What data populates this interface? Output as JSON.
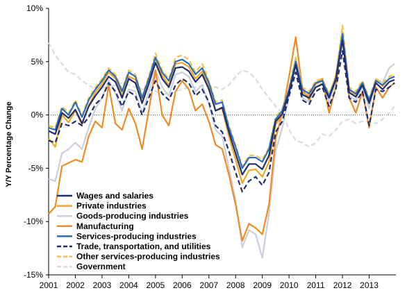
{
  "chart_data": {
    "type": "line",
    "title": "",
    "xlabel": "",
    "ylabel": "Y/Y Percentage Change",
    "ylim": [
      -15,
      10
    ],
    "xlim": [
      2001,
      2014
    ],
    "y_ticks": [
      10,
      5,
      0,
      -5,
      -10,
      -15
    ],
    "y_tick_labels": [
      "10%",
      "5%",
      "0%",
      "-5%",
      "-10%",
      "-15%"
    ],
    "x_ticks": [
      2001,
      2002,
      2003,
      2004,
      2005,
      2006,
      2007,
      2008,
      2009,
      2010,
      2011,
      2012,
      2013
    ],
    "x_tick_labels": [
      "2001",
      "2002",
      "2003",
      "2004",
      "2005",
      "2006",
      "2007",
      "2008",
      "2009",
      "2010",
      "2011",
      "2012",
      "2013"
    ],
    "grid": false,
    "zero_line": "dotted",
    "legend_position": "bottom-left",
    "series": [
      {
        "name": "Wages and salaries",
        "color": "#1f2f6e",
        "dash": "solid",
        "x": [
          2001.0,
          2001.25,
          2001.5,
          2001.75,
          2002.0,
          2002.25,
          2002.5,
          2002.75,
          2003.0,
          2003.25,
          2003.5,
          2003.75,
          2004.0,
          2004.25,
          2004.5,
          2004.75,
          2005.0,
          2005.25,
          2005.5,
          2005.75,
          2006.0,
          2006.25,
          2006.5,
          2006.75,
          2007.0,
          2007.25,
          2007.5,
          2007.75,
          2008.0,
          2008.25,
          2008.5,
          2008.75,
          2009.0,
          2009.25,
          2009.5,
          2009.75,
          2010.0,
          2010.25,
          2010.5,
          2010.75,
          2011.0,
          2011.25,
          2011.5,
          2011.75,
          2012.0,
          2012.25,
          2012.5,
          2012.75,
          2013.0,
          2013.25,
          2013.5,
          2013.75,
          2013.95
        ],
        "y": [
          -1.5,
          -1.8,
          0.2,
          -0.3,
          0.5,
          -0.8,
          0.8,
          1.8,
          2.6,
          3.6,
          3.1,
          1.6,
          3.4,
          3.0,
          1.1,
          2.9,
          4.9,
          3.4,
          2.6,
          4.4,
          4.5,
          4.1,
          3.1,
          3.8,
          2.4,
          0.4,
          0.7,
          -1.6,
          -3.6,
          -5.6,
          -4.6,
          -4.6,
          -5.1,
          -3.8,
          -0.6,
          0.1,
          2.1,
          4.7,
          1.9,
          1.6,
          2.6,
          2.9,
          1.6,
          3.3,
          7.0,
          2.1,
          1.7,
          2.8,
          1.1,
          3.0,
          2.4,
          3.1,
          3.3
        ]
      },
      {
        "name": "Private industries",
        "color": "#f2a623",
        "dash": "solid",
        "x": [
          2001.0,
          2001.25,
          2001.5,
          2001.75,
          2002.0,
          2002.25,
          2002.5,
          2002.75,
          2003.0,
          2003.25,
          2003.5,
          2003.75,
          2004.0,
          2004.25,
          2004.5,
          2004.75,
          2005.0,
          2005.25,
          2005.5,
          2005.75,
          2006.0,
          2006.25,
          2006.5,
          2006.75,
          2007.0,
          2007.25,
          2007.5,
          2007.75,
          2008.0,
          2008.25,
          2008.5,
          2008.75,
          2009.0,
          2009.25,
          2009.5,
          2009.75,
          2010.0,
          2010.25,
          2010.5,
          2010.75,
          2011.0,
          2011.25,
          2011.5,
          2011.75,
          2012.0,
          2012.25,
          2012.5,
          2012.75,
          2013.0,
          2013.25,
          2013.5,
          2013.75,
          2013.95
        ],
        "y": [
          -2.2,
          -3.0,
          0.0,
          -0.7,
          0.4,
          -0.9,
          0.9,
          2.1,
          2.9,
          4.0,
          3.4,
          1.8,
          3.6,
          3.3,
          1.2,
          3.1,
          5.3,
          3.7,
          2.8,
          4.8,
          4.9,
          4.5,
          3.4,
          4.1,
          2.6,
          0.4,
          0.6,
          -2.0,
          -4.2,
          -6.4,
          -5.2,
          -5.1,
          -5.8,
          -4.4,
          -0.9,
          0.0,
          2.3,
          5.2,
          2.1,
          1.8,
          2.9,
          3.2,
          1.8,
          3.7,
          7.8,
          2.3,
          1.9,
          3.1,
          1.2,
          3.3,
          2.7,
          3.4,
          3.6
        ]
      },
      {
        "name": "Goods-producing industries",
        "color": "#c9cfdc",
        "dash": "solid",
        "x": [
          2001.0,
          2001.25,
          2001.5,
          2001.75,
          2002.0,
          2002.25,
          2002.5,
          2002.75,
          2003.0,
          2003.25,
          2003.5,
          2003.75,
          2004.0,
          2004.25,
          2004.5,
          2004.75,
          2005.0,
          2005.25,
          2005.5,
          2005.75,
          2006.0,
          2006.25,
          2006.5,
          2006.75,
          2007.0,
          2007.25,
          2007.5,
          2007.75,
          2008.0,
          2008.25,
          2008.5,
          2008.75,
          2009.0,
          2009.25,
          2009.5,
          2009.75,
          2010.0,
          2010.25,
          2010.5,
          2010.75,
          2011.0,
          2011.25,
          2011.5,
          2011.75,
          2012.0,
          2012.25,
          2012.5,
          2012.75,
          2013.0,
          2013.25,
          2013.5,
          2013.75,
          2013.95
        ],
        "y": [
          -6.0,
          -6.2,
          -3.6,
          -3.2,
          -2.6,
          -3.2,
          -1.2,
          0.6,
          1.6,
          3.2,
          2.0,
          0.4,
          2.4,
          2.2,
          0.2,
          2.2,
          4.2,
          2.6,
          1.8,
          3.8,
          4.0,
          3.6,
          2.2,
          2.8,
          1.0,
          -1.4,
          -2.0,
          -5.0,
          -8.0,
          -12.4,
          -10.8,
          -11.2,
          -13.4,
          -9.2,
          -3.4,
          -1.2,
          1.8,
          5.4,
          1.6,
          1.2,
          2.6,
          3.0,
          1.2,
          3.2,
          7.2,
          1.8,
          1.4,
          2.6,
          0.6,
          3.4,
          3.0,
          4.4,
          4.8
        ]
      },
      {
        "name": "Manufacturing",
        "color": "#f08a24",
        "dash": "solid",
        "x": [
          2001.0,
          2001.25,
          2001.5,
          2001.75,
          2002.0,
          2002.25,
          2002.5,
          2002.75,
          2003.0,
          2003.25,
          2003.5,
          2003.75,
          2004.0,
          2004.25,
          2004.5,
          2004.75,
          2005.0,
          2005.25,
          2005.5,
          2005.75,
          2006.0,
          2006.25,
          2006.5,
          2006.75,
          2007.0,
          2007.25,
          2007.5,
          2007.75,
          2008.0,
          2008.25,
          2008.5,
          2008.75,
          2009.0,
          2009.25,
          2009.5,
          2009.75,
          2010.0,
          2010.25,
          2010.5,
          2010.75,
          2011.0,
          2011.25,
          2011.5,
          2011.75,
          2012.0,
          2012.25,
          2012.5,
          2012.75,
          2013.0,
          2013.25,
          2013.5,
          2013.75,
          2013.95
        ],
        "y": [
          -9.3,
          -8.6,
          -4.8,
          -4.5,
          -4.2,
          -4.4,
          -2.0,
          -0.6,
          -1.2,
          2.8,
          -0.8,
          -1.4,
          0.6,
          -0.8,
          -3.2,
          0.4,
          4.2,
          0.0,
          -1.0,
          2.2,
          3.2,
          2.4,
          0.4,
          1.0,
          -0.6,
          -2.8,
          -3.2,
          -5.6,
          -8.4,
          -11.8,
          -10.2,
          -10.6,
          -11.2,
          -8.4,
          -2.2,
          0.2,
          3.6,
          7.3,
          2.4,
          1.4,
          3.0,
          3.4,
          0.2,
          2.6,
          7.6,
          1.6,
          0.2,
          2.2,
          -1.2,
          2.6,
          1.6,
          2.6,
          3.0
        ]
      },
      {
        "name": "Services-producing industries",
        "color": "#2a6ebb",
        "dash": "solid",
        "x": [
          2001.0,
          2001.25,
          2001.5,
          2001.75,
          2002.0,
          2002.25,
          2002.5,
          2002.75,
          2003.0,
          2003.25,
          2003.5,
          2003.75,
          2004.0,
          2004.25,
          2004.5,
          2004.75,
          2005.0,
          2005.25,
          2005.5,
          2005.75,
          2006.0,
          2006.25,
          2006.5,
          2006.75,
          2007.0,
          2007.25,
          2007.5,
          2007.75,
          2008.0,
          2008.25,
          2008.5,
          2008.75,
          2009.0,
          2009.25,
          2009.5,
          2009.75,
          2010.0,
          2010.25,
          2010.5,
          2010.75,
          2011.0,
          2011.25,
          2011.5,
          2011.75,
          2012.0,
          2012.25,
          2012.5,
          2012.75,
          2013.0,
          2013.25,
          2013.5,
          2013.75,
          2013.95
        ],
        "y": [
          -1.2,
          -1.4,
          0.6,
          0.0,
          1.2,
          -0.2,
          1.4,
          2.4,
          3.2,
          4.2,
          3.6,
          2.2,
          4.0,
          3.6,
          1.6,
          3.4,
          5.4,
          4.0,
          3.2,
          5.0,
          5.2,
          4.8,
          3.8,
          4.4,
          3.0,
          1.0,
          1.2,
          -1.2,
          -3.0,
          -5.0,
          -4.0,
          -4.0,
          -4.4,
          -3.2,
          -0.4,
          0.4,
          2.4,
          5.0,
          2.4,
          2.0,
          3.0,
          3.2,
          1.8,
          3.4,
          7.6,
          2.4,
          2.0,
          3.0,
          1.4,
          3.2,
          2.8,
          3.4,
          3.6
        ]
      },
      {
        "name": "Trade, transportation, and utilities",
        "color": "#1f2f6e",
        "dash": "dashed",
        "x": [
          2001.0,
          2001.25,
          2001.5,
          2001.75,
          2002.0,
          2002.25,
          2002.5,
          2002.75,
          2003.0,
          2003.25,
          2003.5,
          2003.75,
          2004.0,
          2004.25,
          2004.5,
          2004.75,
          2005.0,
          2005.25,
          2005.5,
          2005.75,
          2006.0,
          2006.25,
          2006.5,
          2006.75,
          2007.0,
          2007.25,
          2007.5,
          2007.75,
          2008.0,
          2008.25,
          2008.5,
          2008.75,
          2009.0,
          2009.25,
          2009.5,
          2009.75,
          2010.0,
          2010.25,
          2010.5,
          2010.75,
          2011.0,
          2011.25,
          2011.5,
          2011.75,
          2012.0,
          2012.25,
          2012.5,
          2012.75,
          2013.0,
          2013.25,
          2013.5,
          2013.75,
          2013.95
        ],
        "y": [
          -2.4,
          -2.6,
          -0.8,
          -1.0,
          -0.6,
          -1.0,
          -0.2,
          1.0,
          1.6,
          3.0,
          2.2,
          0.8,
          2.2,
          1.8,
          0.0,
          1.6,
          3.2,
          2.0,
          1.4,
          2.8,
          3.4,
          3.0,
          1.8,
          2.4,
          1.2,
          -1.0,
          -1.6,
          -3.4,
          -5.4,
          -7.2,
          -6.2,
          -5.8,
          -6.6,
          -5.4,
          -1.6,
          -0.6,
          1.8,
          4.0,
          1.4,
          1.0,
          2.2,
          2.6,
          0.8,
          2.4,
          6.0,
          1.6,
          1.2,
          2.2,
          -1.0,
          2.4,
          2.2,
          2.6,
          3.0
        ]
      },
      {
        "name": "Other services-producing industries",
        "color": "#f5c342",
        "dash": "dashed",
        "x": [
          2001.0,
          2001.25,
          2001.5,
          2001.75,
          2002.0,
          2002.25,
          2002.5,
          2002.75,
          2003.0,
          2003.25,
          2003.5,
          2003.75,
          2004.0,
          2004.25,
          2004.5,
          2004.75,
          2005.0,
          2005.25,
          2005.5,
          2005.75,
          2006.0,
          2006.25,
          2006.5,
          2006.75,
          2007.0,
          2007.25,
          2007.5,
          2007.75,
          2008.0,
          2008.25,
          2008.5,
          2008.75,
          2009.0,
          2009.25,
          2009.5,
          2009.75,
          2010.0,
          2010.25,
          2010.5,
          2010.75,
          2011.0,
          2011.25,
          2011.5,
          2011.75,
          2012.0,
          2012.25,
          2012.5,
          2012.75,
          2013.0,
          2013.25,
          2013.5,
          2013.75,
          2013.95
        ],
        "y": [
          -1.0,
          -1.2,
          0.8,
          0.2,
          1.4,
          0.0,
          1.6,
          2.6,
          3.4,
          4.4,
          3.8,
          2.4,
          4.2,
          3.8,
          1.8,
          3.6,
          5.8,
          4.2,
          3.4,
          5.4,
          5.6,
          5.2,
          4.0,
          4.8,
          3.2,
          1.2,
          1.4,
          -1.0,
          -2.8,
          -4.8,
          -3.8,
          -3.8,
          -4.2,
          -3.0,
          -0.2,
          0.6,
          2.6,
          5.4,
          2.6,
          2.2,
          3.2,
          3.4,
          2.0,
          3.6,
          8.4,
          2.6,
          2.2,
          3.2,
          1.6,
          3.4,
          3.0,
          3.6,
          3.8
        ]
      },
      {
        "name": "Government",
        "color": "#d7dbe4",
        "dash": "dashed",
        "x": [
          2001.0,
          2001.25,
          2001.5,
          2001.75,
          2002.0,
          2002.25,
          2002.5,
          2002.75,
          2003.0,
          2003.25,
          2003.5,
          2003.75,
          2004.0,
          2004.25,
          2004.5,
          2004.75,
          2005.0,
          2005.25,
          2005.5,
          2005.75,
          2006.0,
          2006.25,
          2006.5,
          2006.75,
          2007.0,
          2007.25,
          2007.5,
          2007.75,
          2008.0,
          2008.25,
          2008.5,
          2008.75,
          2009.0,
          2009.25,
          2009.5,
          2009.75,
          2010.0,
          2010.25,
          2010.5,
          2010.75,
          2011.0,
          2011.25,
          2011.5,
          2011.75,
          2012.0,
          2012.25,
          2012.5,
          2012.75,
          2013.0,
          2013.25,
          2013.5,
          2013.75,
          2013.95
        ],
        "y": [
          6.8,
          5.6,
          4.8,
          4.0,
          3.8,
          3.2,
          2.8,
          2.4,
          2.6,
          2.6,
          2.8,
          3.0,
          2.8,
          2.6,
          2.4,
          2.4,
          2.2,
          2.0,
          2.0,
          2.2,
          2.4,
          2.6,
          2.6,
          2.8,
          2.8,
          2.6,
          2.4,
          2.8,
          3.6,
          4.2,
          4.0,
          3.4,
          2.4,
          1.6,
          0.8,
          0.2,
          -1.4,
          -2.4,
          -2.6,
          -3.0,
          -2.6,
          -1.8,
          -2.0,
          -1.4,
          -0.6,
          -0.4,
          -0.8,
          -0.6,
          -0.6,
          -0.8,
          -0.4,
          0.2,
          0.8
        ]
      }
    ]
  }
}
